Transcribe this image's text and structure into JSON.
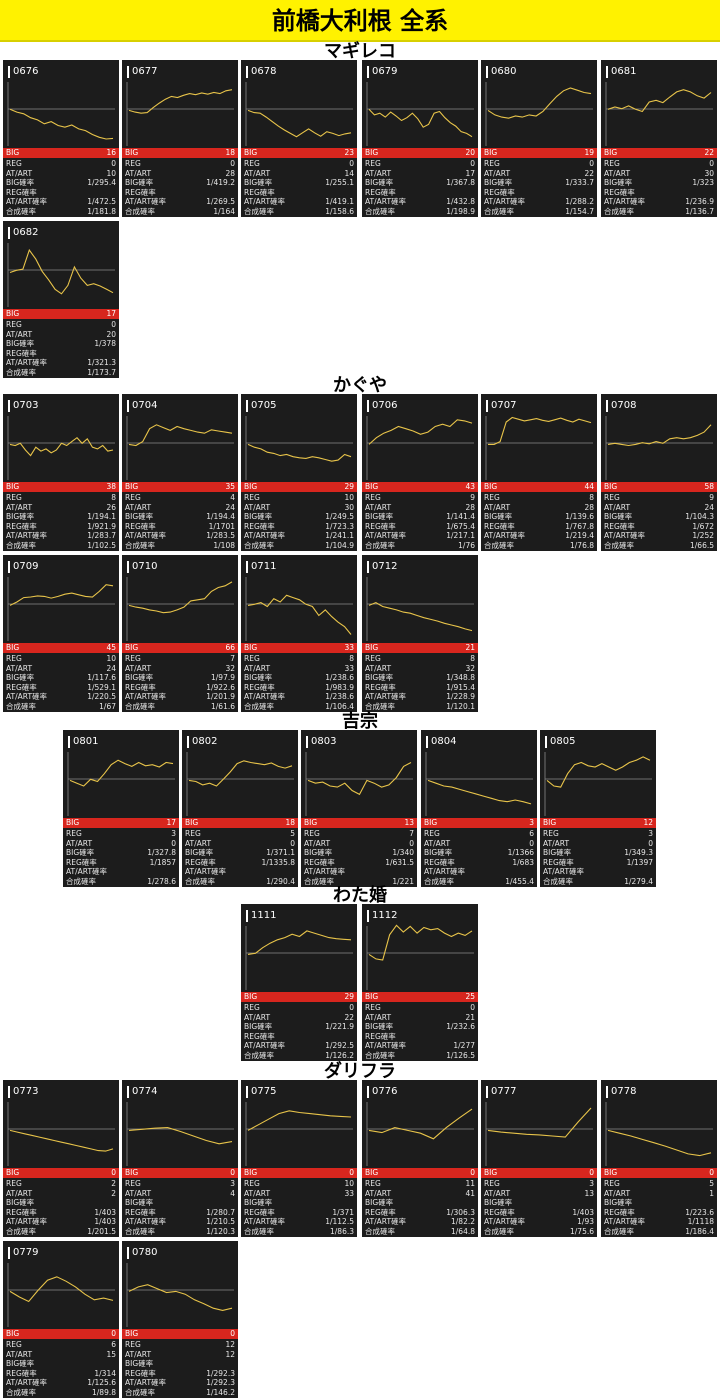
{
  "header": {
    "title": "前橋大利根 全系"
  },
  "colors": {
    "header_bg": "#fff200",
    "card_bg": "#1c1c1c",
    "big_bar": "#d7261e",
    "line": "#e8c44a",
    "baseline": "#8a8a8a"
  },
  "groups": [
    {
      "name": "マギレコ",
      "machines": [
        {
          "id": "0676",
          "big": "16",
          "reg": "0",
          "at": "10",
          "big_p": "1/295.4",
          "reg_p": "",
          "at_p": "1/472.5",
          "total_p": "1/181.8",
          "trend": [
            0.62,
            0.57,
            0.54,
            0.47,
            0.43,
            0.36,
            0.4,
            0.33,
            0.3,
            0.34,
            0.27,
            0.24,
            0.17,
            0.12,
            0.09,
            0.1
          ]
        },
        {
          "id": "0677",
          "big": "18",
          "reg": "0",
          "at": "28",
          "big_p": "1/419.2",
          "reg_p": "",
          "at_p": "1/269.5",
          "total_p": "1/164",
          "trend": [
            0.6,
            0.57,
            0.55,
            0.56,
            0.65,
            0.73,
            0.8,
            0.85,
            0.83,
            0.87,
            0.9,
            0.88,
            0.91,
            0.89,
            0.92,
            0.9,
            0.95,
            0.97
          ]
        },
        {
          "id": "0678",
          "big": "23",
          "reg": "0",
          "at": "14",
          "big_p": "1/255.1",
          "reg_p": "",
          "at_p": "1/419.1",
          "total_p": "1/158.6",
          "trend": [
            0.6,
            0.56,
            0.55,
            0.48,
            0.4,
            0.32,
            0.25,
            0.19,
            0.13,
            0.2,
            0.27,
            0.2,
            0.14,
            0.22,
            0.19,
            0.15,
            0.18,
            0.2
          ]
        },
        {
          "id": "0679",
          "big": "20",
          "reg": "0",
          "at": "17",
          "big_p": "1/367.8",
          "reg_p": "",
          "at_p": "1/432.8",
          "total_p": "1/198.9",
          "trend": [
            0.62,
            0.52,
            0.55,
            0.48,
            0.57,
            0.5,
            0.42,
            0.47,
            0.55,
            0.45,
            0.3,
            0.35,
            0.55,
            0.58,
            0.47,
            0.38,
            0.32,
            0.22,
            0.19,
            0.13
          ]
        },
        {
          "id": "0680",
          "big": "19",
          "reg": "0",
          "at": "22",
          "big_p": "1/333.7",
          "reg_p": "",
          "at_p": "1/288.2",
          "total_p": "1/154.7",
          "trend": [
            0.6,
            0.52,
            0.48,
            0.46,
            0.5,
            0.48,
            0.52,
            0.5,
            0.58,
            0.72,
            0.85,
            0.95,
            1.0,
            0.96,
            0.92,
            0.9
          ]
        },
        {
          "id": "0681",
          "big": "22",
          "reg": "0",
          "at": "30",
          "big_p": "1/323",
          "reg_p": "",
          "at_p": "1/236.9",
          "total_p": "1/136.7",
          "trend": [
            0.62,
            0.66,
            0.63,
            0.68,
            0.62,
            0.58,
            0.75,
            0.78,
            0.74,
            0.84,
            0.93,
            0.97,
            0.93,
            0.86,
            0.82,
            0.92
          ]
        }
      ]
    },
    {
      "name": "",
      "machines": [
        {
          "id": "0682",
          "big": "17",
          "reg": "0",
          "at": "20",
          "big_p": "1/378",
          "reg_p": "",
          "at_p": "1/321.3",
          "total_p": "1/173.7",
          "trend": [
            0.58,
            0.62,
            0.64,
            0.98,
            0.82,
            0.6,
            0.45,
            0.28,
            0.2,
            0.35,
            0.68,
            0.48,
            0.35,
            0.38,
            0.34,
            0.28,
            0.22
          ]
        }
      ]
    },
    {
      "name": "かぐや",
      "machines": [
        {
          "id": "0703",
          "big": "38",
          "reg": "8",
          "at": "26",
          "big_p": "1/194.1",
          "reg_p": "1/921.9",
          "at_p": "1/283.7",
          "total_p": "1/102.5",
          "trend": [
            0.6,
            0.58,
            0.62,
            0.5,
            0.4,
            0.55,
            0.48,
            0.52,
            0.45,
            0.5,
            0.62,
            0.58,
            0.65,
            0.72,
            0.62,
            0.7,
            0.55,
            0.52,
            0.58,
            0.48,
            0.5
          ]
        },
        {
          "id": "0704",
          "big": "35",
          "reg": "4",
          "at": "24",
          "big_p": "1/194.4",
          "reg_p": "1/1701",
          "at_p": "1/283.5",
          "total_p": "1/108",
          "trend": [
            0.6,
            0.58,
            0.65,
            0.88,
            0.95,
            0.9,
            0.85,
            0.92,
            0.88,
            0.85,
            0.82,
            0.8,
            0.86,
            0.84,
            0.82,
            0.8
          ]
        },
        {
          "id": "0705",
          "big": "29",
          "reg": "10",
          "at": "30",
          "big_p": "1/249.5",
          "reg_p": "1/723.3",
          "at_p": "1/241.1",
          "total_p": "1/104.9",
          "trend": [
            0.6,
            0.55,
            0.52,
            0.46,
            0.44,
            0.4,
            0.42,
            0.38,
            0.36,
            0.35,
            0.38,
            0.36,
            0.33,
            0.3,
            0.32,
            0.42,
            0.38
          ]
        },
        {
          "id": "0706",
          "big": "43",
          "reg": "9",
          "at": "28",
          "big_p": "1/141.4",
          "reg_p": "1/675.4",
          "at_p": "1/217.1",
          "total_p": "1/76",
          "trend": [
            0.6,
            0.72,
            0.8,
            0.85,
            0.92,
            0.88,
            0.84,
            0.78,
            0.82,
            0.92,
            0.96,
            0.92,
            1.04,
            1.02,
            0.98
          ]
        },
        {
          "id": "0707",
          "big": "44",
          "reg": "8",
          "at": "28",
          "big_p": "1/139.6",
          "reg_p": "1/767.8",
          "at_p": "1/219.4",
          "total_p": "1/76.8",
          "trend": [
            0.6,
            0.6,
            0.65,
            1.0,
            1.08,
            1.05,
            1.02,
            1.04,
            1.06,
            1.03,
            1.01,
            1.04,
            1.07,
            1.03,
            1.0,
            1.05,
            1.02,
            0.99
          ]
        },
        {
          "id": "0708",
          "big": "58",
          "reg": "9",
          "at": "24",
          "big_p": "1/104.3",
          "reg_p": "1/672",
          "at_p": "1/252",
          "total_p": "1/66.5",
          "trend": [
            0.6,
            0.62,
            0.6,
            0.58,
            0.6,
            0.63,
            0.61,
            0.65,
            0.62,
            0.7,
            0.72,
            0.7,
            0.72,
            0.76,
            0.82,
            0.95
          ]
        }
      ]
    },
    {
      "name": "",
      "machines": [
        {
          "id": "0709",
          "big": "45",
          "reg": "10",
          "at": "24",
          "big_p": "1/117.6",
          "reg_p": "1/529.1",
          "at_p": "1/220.5",
          "total_p": "1/67",
          "trend": [
            0.6,
            0.66,
            0.74,
            0.75,
            0.77,
            0.76,
            0.73,
            0.76,
            0.8,
            0.82,
            0.79,
            0.76,
            0.75,
            0.85,
            0.97,
            0.95
          ]
        },
        {
          "id": "0710",
          "big": "66",
          "reg": "7",
          "at": "32",
          "big_p": "1/97.9",
          "reg_p": "1/922.6",
          "at_p": "1/201.9",
          "total_p": "1/61.6",
          "trend": [
            0.6,
            0.57,
            0.55,
            0.52,
            0.5,
            0.47,
            0.48,
            0.52,
            0.57,
            0.68,
            0.7,
            0.72,
            0.85,
            0.92,
            0.95,
            1.02
          ]
        },
        {
          "id": "0711",
          "big": "33",
          "reg": "8",
          "at": "33",
          "big_p": "1/238.6",
          "reg_p": "1/983.9",
          "at_p": "1/238.6",
          "total_p": "1/106.4",
          "trend": [
            0.6,
            0.62,
            0.65,
            0.58,
            0.72,
            0.66,
            0.78,
            0.74,
            0.7,
            0.62,
            0.58,
            0.42,
            0.52,
            0.4,
            0.3,
            0.22,
            0.08
          ]
        },
        {
          "id": "0712",
          "big": "21",
          "reg": "8",
          "at": "32",
          "big_p": "1/348.8",
          "reg_p": "1/915.4",
          "at_p": "1/228.9",
          "total_p": "1/120.1",
          "trend": [
            0.6,
            0.65,
            0.58,
            0.55,
            0.52,
            0.48,
            0.46,
            0.42,
            0.38,
            0.35,
            0.32,
            0.28,
            0.25,
            0.22,
            0.18,
            0.15
          ]
        }
      ]
    },
    {
      "name": "吉宗",
      "machines": [
        {
          "id": "0801",
          "big": "17",
          "reg": "3",
          "at": "0",
          "big_p": "1/327.8",
          "reg_p": "1/1857",
          "at_p": "",
          "total_p": "1/278.6",
          "trend": [
            0.6,
            0.55,
            0.5,
            0.62,
            0.58,
            0.72,
            0.88,
            0.96,
            0.9,
            0.85,
            0.92,
            0.86,
            0.88,
            0.84,
            0.92,
            0.9
          ]
        },
        {
          "id": "0802",
          "big": "18",
          "reg": "5",
          "at": "0",
          "big_p": "1/371.1",
          "reg_p": "1/1335.8",
          "at_p": "",
          "total_p": "1/290.4",
          "trend": [
            0.6,
            0.58,
            0.52,
            0.55,
            0.5,
            0.62,
            0.75,
            0.9,
            0.95,
            0.92,
            0.9,
            0.88,
            0.91,
            0.85,
            0.82,
            0.86
          ]
        },
        {
          "id": "0803",
          "big": "13",
          "reg": "7",
          "at": "0",
          "big_p": "1/340",
          "reg_p": "1/631.5",
          "at_p": "",
          "total_p": "1/221",
          "trend": [
            0.6,
            0.55,
            0.57,
            0.5,
            0.48,
            0.55,
            0.42,
            0.35,
            0.6,
            0.55,
            0.48,
            0.52,
            0.65,
            0.85,
            0.92
          ]
        },
        {
          "id": "0804",
          "big": "3",
          "reg": "6",
          "at": "0",
          "big_p": "1/1366",
          "reg_p": "1/683",
          "at_p": "",
          "total_p": "1/455.4",
          "trend": [
            0.6,
            0.55,
            0.5,
            0.48,
            0.44,
            0.4,
            0.36,
            0.32,
            0.28,
            0.24,
            0.22,
            0.25,
            0.22,
            0.18
          ]
        },
        {
          "id": "0805",
          "big": "12",
          "reg": "3",
          "at": "0",
          "big_p": "1/349.3",
          "reg_p": "1/1397",
          "at_p": "",
          "total_p": "1/279.4",
          "trend": [
            0.6,
            0.5,
            0.48,
            0.72,
            0.88,
            0.92,
            0.86,
            0.84,
            0.9,
            0.84,
            0.78,
            0.84,
            0.92,
            0.96,
            1.02,
            0.96
          ]
        }
      ]
    },
    {
      "name": "わた婚",
      "machines": [
        {
          "id": "1111",
          "big": "29",
          "reg": "0",
          "at": "22",
          "big_p": "1/221.9",
          "reg_p": "",
          "at_p": "1/292.5",
          "total_p": "1/126.2",
          "trend": [
            0.6,
            0.62,
            0.72,
            0.8,
            0.86,
            0.9,
            0.96,
            0.92,
            1.02,
            0.98,
            0.94,
            0.9,
            0.88,
            0.87,
            0.86
          ]
        },
        {
          "id": "1112",
          "big": "25",
          "reg": "0",
          "at": "21",
          "big_p": "1/232.6",
          "reg_p": "",
          "at_p": "1/277",
          "total_p": "1/126.5",
          "trend": [
            0.6,
            0.52,
            0.5,
            0.95,
            1.12,
            1.0,
            1.1,
            0.98,
            1.08,
            1.04,
            1.06,
            0.98,
            0.92,
            0.98,
            0.94,
            1.02
          ]
        }
      ]
    },
    {
      "name": "ダリフラ",
      "machines": [
        {
          "id": "0773",
          "big": "0",
          "reg": "2",
          "at": "2",
          "big_p": "",
          "reg_p": "1/403",
          "at_p": "1/403",
          "total_p": "1/201.5",
          "trend": [
            0.6,
            0.57,
            0.54,
            0.51,
            0.48,
            0.45,
            0.42,
            0.39,
            0.36,
            0.33,
            0.3,
            0.27,
            0.24,
            0.23,
            0.27
          ]
        },
        {
          "id": "0774",
          "big": "0",
          "reg": "3",
          "at": "4",
          "big_p": "",
          "reg_p": "1/280.7",
          "at_p": "1/210.5",
          "total_p": "1/120.3",
          "trend": [
            0.6,
            0.62,
            0.64,
            0.65,
            0.58,
            0.5,
            0.42,
            0.36,
            0.4
          ]
        },
        {
          "id": "0775",
          "big": "0",
          "reg": "10",
          "at": "33",
          "big_p": "",
          "reg_p": "1/371",
          "at_p": "1/112.5",
          "total_p": "1/86.3",
          "trend": [
            0.6,
            0.7,
            0.8,
            0.9,
            0.95,
            0.92,
            0.9,
            0.88,
            0.86,
            0.85,
            0.84
          ]
        },
        {
          "id": "0776",
          "big": "0",
          "reg": "11",
          "at": "41",
          "big_p": "",
          "reg_p": "1/306.3",
          "at_p": "1/82.2",
          "total_p": "1/64.8",
          "trend": [
            0.6,
            0.56,
            0.65,
            0.6,
            0.55,
            0.45,
            0.65,
            0.82,
            0.98
          ]
        },
        {
          "id": "0777",
          "big": "0",
          "reg": "3",
          "at": "13",
          "big_p": "",
          "reg_p": "1/403",
          "at_p": "1/93",
          "total_p": "1/75.6",
          "trend": [
            0.6,
            0.57,
            0.55,
            0.53,
            0.52,
            0.5,
            0.48,
            0.75,
            1.0
          ]
        },
        {
          "id": "0778",
          "big": "0",
          "reg": "5",
          "at": "1",
          "big_p": "",
          "reg_p": "1/223.6",
          "at_p": "1/1118",
          "total_p": "1/186.4",
          "trend": [
            0.6,
            0.55,
            0.5,
            0.44,
            0.38,
            0.32,
            0.25,
            0.18,
            0.15,
            0.2
          ]
        }
      ]
    },
    {
      "name": "",
      "machines": [
        {
          "id": "0779",
          "big": "0",
          "reg": "6",
          "at": "15",
          "big_p": "",
          "reg_p": "1/314",
          "at_p": "1/125.6",
          "total_p": "1/89.8",
          "trend": [
            0.6,
            0.5,
            0.42,
            0.62,
            0.8,
            0.86,
            0.78,
            0.68,
            0.55,
            0.45,
            0.48,
            0.44
          ]
        },
        {
          "id": "0780",
          "big": "0",
          "reg": "12",
          "at": "12",
          "big_p": "",
          "reg_p": "1/292.3",
          "at_p": "1/292.3",
          "total_p": "1/146.2",
          "trend": [
            0.6,
            0.68,
            0.72,
            0.65,
            0.58,
            0.6,
            0.55,
            0.45,
            0.38,
            0.3,
            0.26,
            0.3
          ]
        }
      ]
    }
  ],
  "labels": {
    "big": "BIG",
    "reg": "REG",
    "at": "AT/ART",
    "big_p": "BIG確率",
    "reg_p": "REG確率",
    "at_p": "AT/ART確率",
    "total_p": "合成確率"
  }
}
